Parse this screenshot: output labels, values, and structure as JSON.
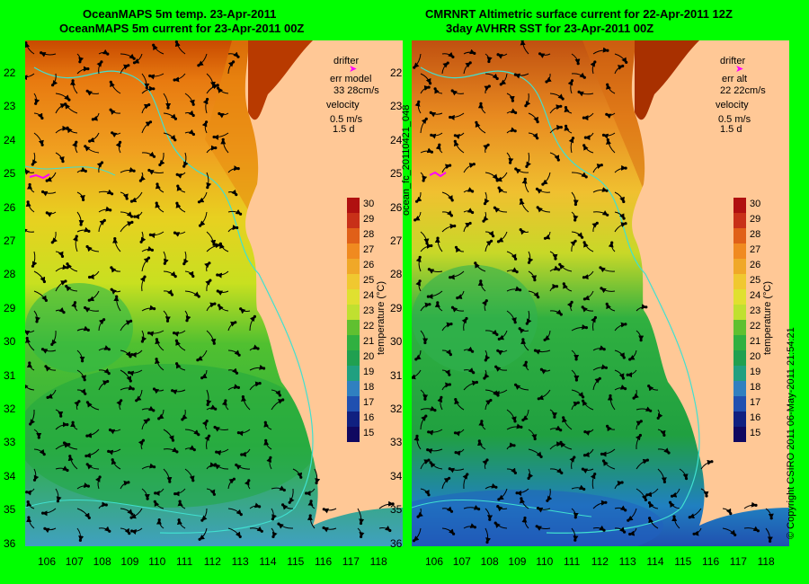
{
  "left": {
    "title_line1": "OceanMAPS 5m temp. 23-Apr-2011",
    "title_line2": "OceanMAPS 5m current for 23-Apr-2011 00Z",
    "legend": {
      "drifter": "drifter",
      "err_label": "err model",
      "err_value": "33 28cm/s",
      "velocity": "velocity",
      "vel_value": "0.5 m/s",
      "vel_days": "1.5 d"
    }
  },
  "right": {
    "title_line1": "CMRNRT Altimetric surface current for 22-Apr-2011 12Z",
    "title_line2": "3day AVHRR SST for 23-Apr-2011 00Z",
    "legend": {
      "drifter": "drifter",
      "err_label": "err alt",
      "err_value": "22 22cm/s",
      "velocity": "velocity",
      "vel_value": "0.5 m/s",
      "vel_days": "1.5 d"
    }
  },
  "colorbar": {
    "label": "temperature (°C)",
    "ticks": [
      "30",
      "29",
      "28",
      "27",
      "26",
      "25",
      "24",
      "23",
      "22",
      "21",
      "20",
      "19",
      "18",
      "17",
      "16",
      "15"
    ]
  },
  "axes": {
    "lat_ticks": [
      "22",
      "23",
      "24",
      "25",
      "26",
      "27",
      "28",
      "29",
      "30",
      "31",
      "32",
      "33",
      "34",
      "35",
      "36"
    ],
    "lon_ticks": [
      "106",
      "107",
      "108",
      "109",
      "110",
      "111",
      "112",
      "113",
      "114",
      "115",
      "116",
      "117",
      "118"
    ]
  },
  "side_label": "ocean_fc_20110421_048",
  "copyright": "© Copyright CSIRO 2011  06-May-2011 21:54:21",
  "colors": {
    "background": "#00ff00",
    "land": "#ffc896",
    "drifter": "#ff00ff",
    "contour": "#40e0d0"
  }
}
